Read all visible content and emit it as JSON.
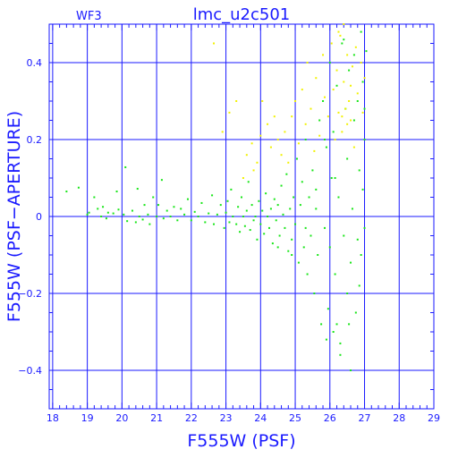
{
  "chart_data": {
    "type": "scatter",
    "title": "lmc_u2c501",
    "corner_label": "WF3",
    "xlabel": "F555W (PSF)",
    "ylabel": "F555W (PSF−APERTURE)",
    "xlim": [
      17.9,
      29
    ],
    "ylim": [
      -0.5,
      0.5
    ],
    "xticks": [
      18,
      19,
      20,
      21,
      22,
      23,
      24,
      25,
      26,
      27,
      28,
      29
    ],
    "yticks": [
      -0.4,
      -0.2,
      0,
      0.2,
      0.4
    ],
    "ytick_labels": [
      "−0.4",
      "−0.2",
      "0",
      "0.2",
      "0.4"
    ],
    "grid": true,
    "colors": {
      "axes": "#1a1aff",
      "grid": "#1a1aff",
      "primary": "#19e619",
      "secondary": "#f2f200"
    },
    "series": [
      {
        "color": "green",
        "points": [
          [
            18.4,
            0.065
          ],
          [
            18.75,
            0.075
          ],
          [
            19.0,
            0.005
          ],
          [
            19.05,
            0.01
          ],
          [
            19.2,
            0.05
          ],
          [
            19.3,
            0.02
          ],
          [
            19.4,
            0.0
          ],
          [
            19.45,
            0.025
          ],
          [
            19.55,
            -0.005
          ],
          [
            19.6,
            0.01
          ],
          [
            19.75,
            0.008
          ],
          [
            19.85,
            0.065
          ],
          [
            19.9,
            0.018
          ],
          [
            20.05,
            0.005
          ],
          [
            20.1,
            0.128
          ],
          [
            20.15,
            -0.012
          ],
          [
            20.3,
            0.015
          ],
          [
            20.4,
            -0.015
          ],
          [
            20.45,
            0.072
          ],
          [
            20.5,
            0.0
          ],
          [
            20.6,
            -0.008
          ],
          [
            20.65,
            0.03
          ],
          [
            20.75,
            0.005
          ],
          [
            20.8,
            -0.02
          ],
          [
            20.9,
            0.05
          ],
          [
            21.0,
            0.0
          ],
          [
            21.05,
            0.03
          ],
          [
            21.15,
            0.095
          ],
          [
            21.2,
            -0.005
          ],
          [
            21.3,
            0.015
          ],
          [
            21.4,
            0.0
          ],
          [
            21.5,
            0.025
          ],
          [
            21.6,
            -0.01
          ],
          [
            21.7,
            0.02
          ],
          [
            21.8,
            0.005
          ],
          [
            21.9,
            0.045
          ],
          [
            22.0,
            -0.01
          ],
          [
            22.1,
            0.012
          ],
          [
            22.2,
            0.0
          ],
          [
            22.3,
            0.035
          ],
          [
            22.4,
            -0.015
          ],
          [
            22.5,
            0.008
          ],
          [
            22.6,
            0.055
          ],
          [
            22.65,
            -0.02
          ],
          [
            22.75,
            0.005
          ],
          [
            22.85,
            0.03
          ],
          [
            22.95,
            -0.03
          ],
          [
            23.0,
            0.01
          ],
          [
            23.05,
            0.04
          ],
          [
            23.1,
            -0.015
          ],
          [
            23.15,
            0.07
          ],
          [
            23.2,
            0.0
          ],
          [
            23.3,
            -0.02
          ],
          [
            23.35,
            0.025
          ],
          [
            23.4,
            -0.04
          ],
          [
            23.45,
            0.05
          ],
          [
            23.5,
            0.0
          ],
          [
            23.55,
            -0.025
          ],
          [
            23.6,
            0.015
          ],
          [
            23.65,
            0.09
          ],
          [
            23.7,
            -0.035
          ],
          [
            23.75,
            0.03
          ],
          [
            23.8,
            -0.01
          ],
          [
            23.85,
            0.0
          ],
          [
            23.9,
            -0.06
          ],
          [
            23.95,
            0.04
          ],
          [
            24.0,
            -0.02
          ],
          [
            24.05,
            0.015
          ],
          [
            24.1,
            -0.045
          ],
          [
            24.15,
            0.06
          ],
          [
            24.2,
            0.0
          ],
          [
            24.25,
            -0.03
          ],
          [
            24.3,
            0.02
          ],
          [
            24.35,
            -0.07
          ],
          [
            24.4,
            0.045
          ],
          [
            24.45,
            -0.01
          ],
          [
            24.5,
            0.03
          ],
          [
            24.55,
            -0.05
          ],
          [
            24.6,
            0.08
          ],
          [
            24.65,
            0.005
          ],
          [
            24.7,
            -0.03
          ],
          [
            24.75,
            0.11
          ],
          [
            24.8,
            -0.09
          ],
          [
            24.85,
            0.02
          ],
          [
            24.9,
            -0.06
          ],
          [
            24.95,
            0.05
          ],
          [
            25.0,
            -0.02
          ],
          [
            25.05,
            0.15
          ],
          [
            25.1,
            -0.12
          ],
          [
            25.15,
            0.03
          ],
          [
            25.2,
            0.09
          ],
          [
            25.25,
            -0.08
          ],
          [
            25.3,
            0.2
          ],
          [
            25.35,
            -0.15
          ],
          [
            25.4,
            0.05
          ],
          [
            25.45,
            -0.05
          ],
          [
            25.5,
            0.12
          ],
          [
            25.55,
            -0.2
          ],
          [
            25.6,
            0.07
          ],
          [
            25.65,
            -0.1
          ],
          [
            25.7,
            0.25
          ],
          [
            25.75,
            -0.28
          ],
          [
            25.8,
            0.3
          ],
          [
            25.85,
            -0.03
          ],
          [
            25.9,
            0.18
          ],
          [
            25.95,
            -0.24
          ],
          [
            26.0,
            0.4
          ],
          [
            26.0,
            -0.08
          ],
          [
            26.05,
            0.1
          ],
          [
            26.1,
            -0.3
          ],
          [
            26.1,
            0.22
          ],
          [
            26.15,
            -0.15
          ],
          [
            26.2,
            0.34
          ],
          [
            26.25,
            0.05
          ],
          [
            26.3,
            -0.33
          ],
          [
            26.35,
            0.45
          ],
          [
            26.4,
            -0.05
          ],
          [
            26.45,
            0.28
          ],
          [
            26.5,
            -0.2
          ],
          [
            26.5,
            0.15
          ],
          [
            26.55,
            0.38
          ],
          [
            26.6,
            -0.12
          ],
          [
            26.65,
            0.02
          ],
          [
            26.7,
            0.42
          ],
          [
            26.75,
            -0.25
          ],
          [
            26.8,
            0.3
          ],
          [
            26.8,
            -0.06
          ],
          [
            26.85,
            0.12
          ],
          [
            26.9,
            0.48
          ],
          [
            26.9,
            -0.1
          ],
          [
            26.95,
            0.35
          ],
          [
            27.0,
            0.2
          ],
          [
            27.0,
            -0.03
          ],
          [
            27.05,
            0.43
          ],
          [
            26.3,
            -0.36
          ],
          [
            26.6,
            -0.4
          ],
          [
            26.2,
            -0.28
          ],
          [
            26.95,
            0.07
          ],
          [
            26.7,
            0.25
          ],
          [
            25.9,
            -0.32
          ],
          [
            25.6,
            0.02
          ],
          [
            25.3,
            -0.03
          ],
          [
            24.9,
            -0.1
          ],
          [
            24.5,
            -0.08
          ],
          [
            26.4,
            0.46
          ],
          [
            27.0,
            0.28
          ],
          [
            26.15,
            0.1
          ],
          [
            25.85,
            0.2
          ],
          [
            26.85,
            -0.18
          ],
          [
            26.55,
            -0.28
          ]
        ]
      },
      {
        "color": "yellow",
        "points": [
          [
            22.65,
            0.45
          ],
          [
            22.9,
            0.22
          ],
          [
            23.1,
            0.27
          ],
          [
            23.3,
            0.3
          ],
          [
            23.5,
            0.1
          ],
          [
            23.6,
            0.16
          ],
          [
            23.75,
            0.19
          ],
          [
            23.8,
            0.12
          ],
          [
            23.9,
            0.14
          ],
          [
            24.0,
            0.21
          ],
          [
            24.05,
            0.3
          ],
          [
            24.2,
            0.24
          ],
          [
            24.3,
            0.18
          ],
          [
            24.4,
            0.26
          ],
          [
            24.5,
            0.2
          ],
          [
            24.6,
            0.16
          ],
          [
            24.7,
            0.22
          ],
          [
            24.8,
            0.14
          ],
          [
            24.9,
            0.26
          ],
          [
            25.0,
            0.3
          ],
          [
            25.1,
            0.19
          ],
          [
            25.2,
            0.33
          ],
          [
            25.3,
            0.24
          ],
          [
            25.35,
            0.4
          ],
          [
            25.45,
            0.28
          ],
          [
            25.55,
            0.17
          ],
          [
            25.6,
            0.36
          ],
          [
            25.7,
            0.21
          ],
          [
            25.8,
            0.42
          ],
          [
            25.85,
            0.31
          ],
          [
            25.95,
            0.26
          ],
          [
            26.05,
            0.45
          ],
          [
            26.1,
            0.33
          ],
          [
            26.15,
            0.2
          ],
          [
            26.2,
            0.38
          ],
          [
            26.25,
            0.27
          ],
          [
            26.3,
            0.47
          ],
          [
            26.35,
            0.22
          ],
          [
            26.4,
            0.35
          ],
          [
            26.45,
            0.28
          ],
          [
            26.5,
            0.42
          ],
          [
            26.55,
            0.3
          ],
          [
            26.6,
            0.25
          ],
          [
            26.65,
            0.39
          ],
          [
            26.7,
            0.18
          ],
          [
            26.75,
            0.44
          ],
          [
            26.8,
            0.32
          ],
          [
            26.9,
            0.4
          ],
          [
            26.95,
            0.27
          ],
          [
            27.0,
            0.36
          ],
          [
            26.4,
            0.5
          ],
          [
            26.25,
            0.48
          ],
          [
            26.5,
            0.24
          ],
          [
            26.35,
            0.26
          ],
          [
            26.6,
            0.34
          ]
        ]
      }
    ]
  }
}
